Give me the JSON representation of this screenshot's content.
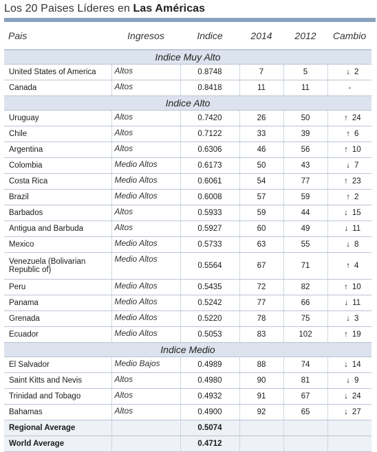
{
  "title": {
    "prefix": "Los 20 Paises Líderes en ",
    "bold": "Las Américas"
  },
  "headers": {
    "country": "Pais",
    "income": "Ingresos",
    "index": "Indice",
    "y2014": "2014",
    "y2012": "2012",
    "change": "Cambio"
  },
  "sections": [
    {
      "label": "Indice Muy Alto",
      "rows": [
        {
          "country": "United States of America",
          "income": "Altos",
          "index": "0.8748",
          "y2014": "7",
          "y2012": "5",
          "dir": "down",
          "change": "2"
        },
        {
          "country": "Canada",
          "income": "Altos",
          "index": "0.8418",
          "y2014": "11",
          "y2012": "11",
          "dir": "none",
          "change": "-"
        }
      ]
    },
    {
      "label": "Indice Alto",
      "rows": [
        {
          "country": "Uruguay",
          "income": "Altos",
          "index": "0.7420",
          "y2014": "26",
          "y2012": "50",
          "dir": "up",
          "change": "24"
        },
        {
          "country": "Chile",
          "income": "Altos",
          "index": "0.7122",
          "y2014": "33",
          "y2012": "39",
          "dir": "up",
          "change": "6"
        },
        {
          "country": "Argentina",
          "income": "Altos",
          "index": "0.6306",
          "y2014": "46",
          "y2012": "56",
          "dir": "up",
          "change": "10"
        },
        {
          "country": "Colombia",
          "income": "Medio Altos",
          "index": "0.6173",
          "y2014": "50",
          "y2012": "43",
          "dir": "down",
          "change": "7"
        },
        {
          "country": "Costa Rica",
          "income": "Medio Altos",
          "index": "0.6061",
          "y2014": "54",
          "y2012": "77",
          "dir": "up",
          "change": "23"
        },
        {
          "country": "Brazil",
          "income": "Medio Altos",
          "index": "0.6008",
          "y2014": "57",
          "y2012": "59",
          "dir": "up",
          "change": "2"
        },
        {
          "country": "Barbados",
          "income": "Altos",
          "index": "0.5933",
          "y2014": "59",
          "y2012": "44",
          "dir": "down",
          "change": "15"
        },
        {
          "country": "Antigua and Barbuda",
          "income": "Altos",
          "index": "0.5927",
          "y2014": "60",
          "y2012": "49",
          "dir": "down",
          "change": "11"
        },
        {
          "country": "Mexico",
          "income": "Medio Altos",
          "index": "0.5733",
          "y2014": "63",
          "y2012": "55",
          "dir": "down",
          "change": "8"
        },
        {
          "country": "Venezuela (Bolivarian Republic of)",
          "income": "Medio Altos",
          "index": "0.5564",
          "y2014": "67",
          "y2012": "71",
          "dir": "up",
          "change": "4",
          "tall": true
        },
        {
          "country": "Peru",
          "income": "Medio Altos",
          "index": "0.5435",
          "y2014": "72",
          "y2012": "82",
          "dir": "up",
          "change": "10"
        },
        {
          "country": "Panama",
          "income": "Medio Altos",
          "index": "0.5242",
          "y2014": "77",
          "y2012": "66",
          "dir": "down",
          "change": "11"
        },
        {
          "country": "Grenada",
          "income": "Medio Altos",
          "index": "0.5220",
          "y2014": "78",
          "y2012": "75",
          "dir": "down",
          "change": "3"
        },
        {
          "country": "Ecuador",
          "income": "Medio Altos",
          "index": "0.5053",
          "y2014": "83",
          "y2012": "102",
          "dir": "up",
          "change": "19"
        }
      ]
    },
    {
      "label": "Indice Medio",
      "rows": [
        {
          "country": "El Salvador",
          "income": "Medio Bajos",
          "index": "0.4989",
          "y2014": "88",
          "y2012": "74",
          "dir": "down",
          "change": "14"
        },
        {
          "country": "Saint Kitts and Nevis",
          "income": "Altos",
          "index": "0.4980",
          "y2014": "90",
          "y2012": "81",
          "dir": "down",
          "change": "9"
        },
        {
          "country": "Trinidad and Tobago",
          "income": "Altos",
          "index": "0.4932",
          "y2014": "91",
          "y2012": "67",
          "dir": "down",
          "change": "24"
        },
        {
          "country": "Bahamas",
          "income": "Altos",
          "index": "0.4900",
          "y2014": "92",
          "y2012": "65",
          "dir": "down",
          "change": "27"
        }
      ]
    }
  ],
  "averages": [
    {
      "label": "Regional Average",
      "index": "0.5074"
    },
    {
      "label": "World Average",
      "index": "0.4712"
    }
  ],
  "glyphs": {
    "up": "↑",
    "down": "↓"
  },
  "colors": {
    "rule": "#8aa2bd",
    "section_bg": "#dde3ee",
    "avg_bg": "#eef1f6"
  }
}
